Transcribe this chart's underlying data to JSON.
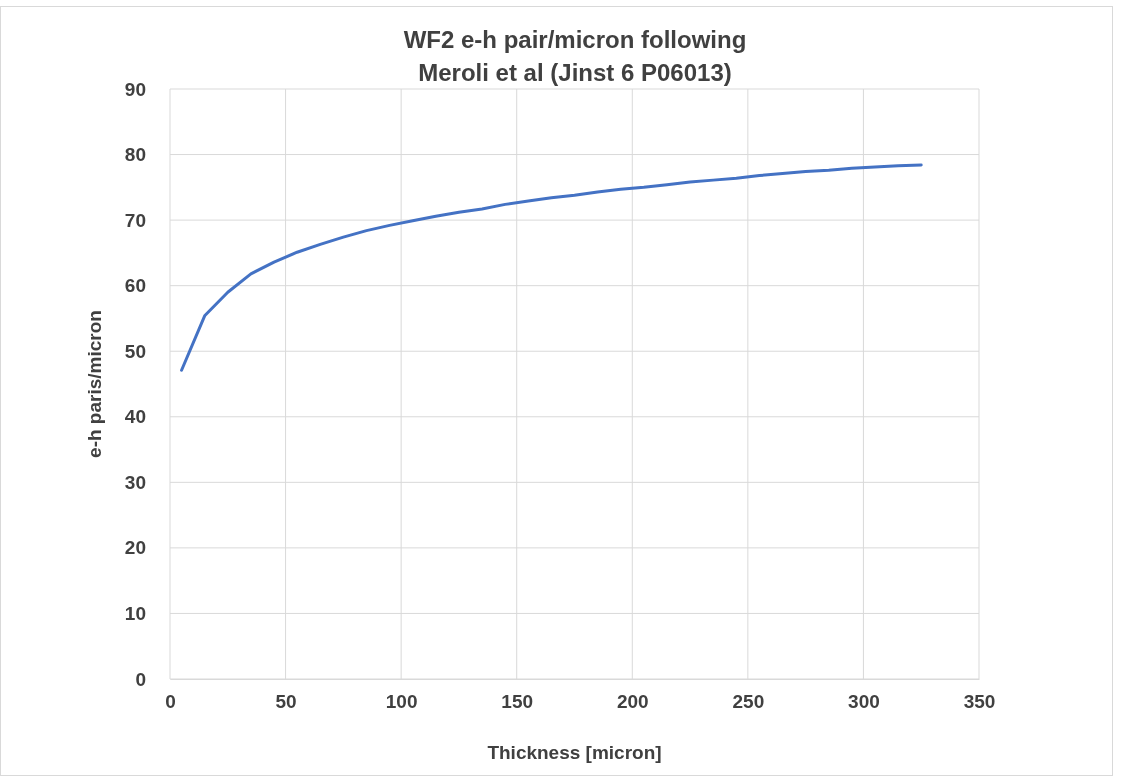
{
  "chart_data": {
    "type": "line",
    "title": "WF2 e-h pair/micron following\nMeroli et al (Jinst 6 P06013)",
    "xlabel": "Thickness [micron]",
    "ylabel": "e-h paris/micron",
    "x": [
      5,
      15,
      25,
      35,
      45,
      55,
      65,
      75,
      85,
      95,
      105,
      115,
      125,
      135,
      145,
      155,
      165,
      175,
      185,
      195,
      205,
      215,
      225,
      235,
      245,
      255,
      265,
      275,
      285,
      295,
      305,
      315,
      325
    ],
    "series": [
      {
        "color": "#4472c4",
        "values": [
          47.1,
          55.4,
          59.0,
          61.8,
          63.6,
          65.1,
          66.3,
          67.4,
          68.4,
          69.2,
          69.9,
          70.6,
          71.2,
          71.7,
          72.4,
          72.9,
          73.4,
          73.8,
          74.3,
          74.7,
          75.0,
          75.4,
          75.8,
          76.1,
          76.4,
          76.8,
          77.1,
          77.4,
          77.6,
          77.9,
          78.1,
          78.3,
          78.4
        ]
      }
    ],
    "xlim": [
      0,
      350
    ],
    "xticks": [
      0,
      50,
      100,
      150,
      200,
      250,
      300,
      350
    ],
    "ylim": [
      0,
      90
    ],
    "yticks": [
      0,
      10,
      20,
      30,
      40,
      50,
      60,
      70,
      80,
      90
    ],
    "grid": true,
    "marker": "none",
    "line_style": "solid"
  }
}
